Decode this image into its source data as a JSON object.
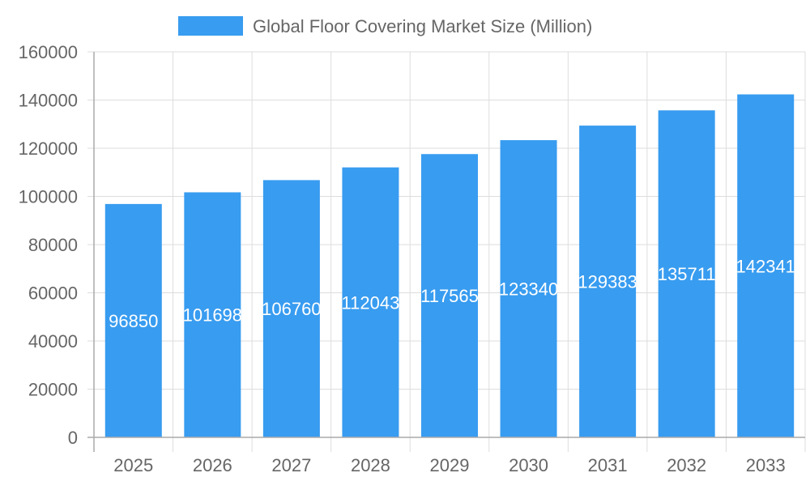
{
  "chart_data": {
    "type": "bar",
    "categories": [
      "2025",
      "2026",
      "2027",
      "2028",
      "2029",
      "2030",
      "2031",
      "2032",
      "2033"
    ],
    "series": [
      {
        "name": "Global Floor Covering Market Size (Million)",
        "values": [
          96850,
          101698,
          106760,
          112043,
          117565,
          123340,
          129383,
          135711,
          142341
        ],
        "color": "#389cf0"
      }
    ],
    "ylim": [
      0,
      160000
    ],
    "yticks": [
      "0",
      "20000",
      "40000",
      "60000",
      "80000",
      "100000",
      "120000",
      "140000",
      "160000"
    ],
    "grid": true,
    "legend": "top",
    "data_labels": true
  }
}
